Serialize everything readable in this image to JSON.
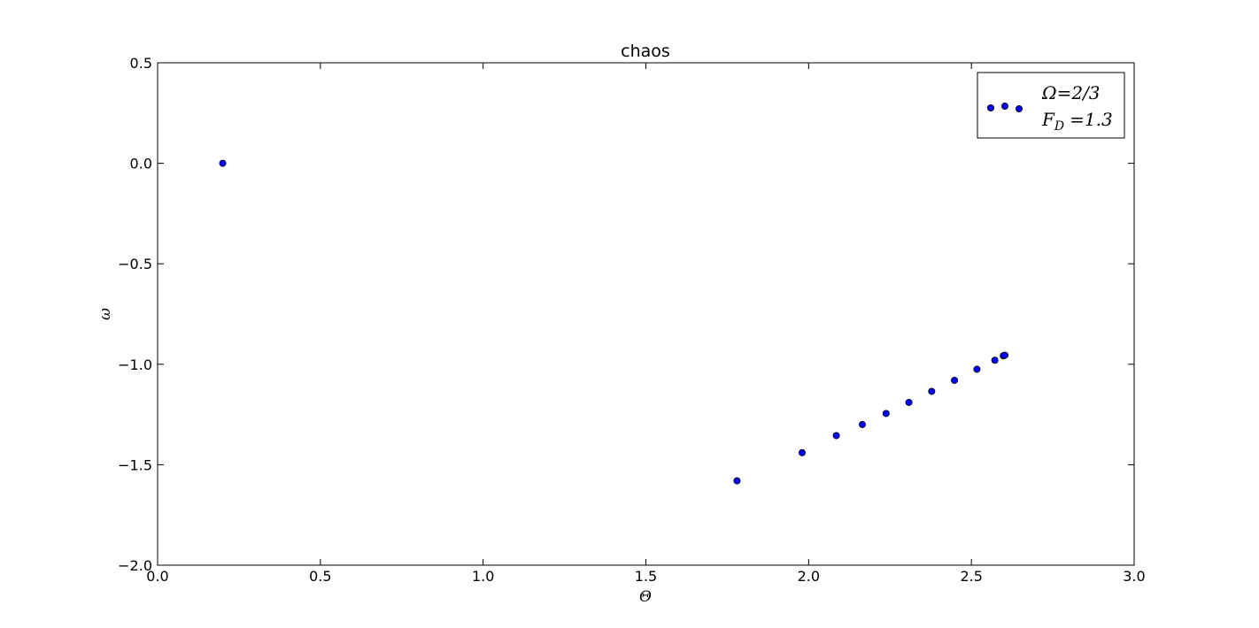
{
  "chart_data": {
    "type": "scatter",
    "title": "chaos",
    "xlabel": "Θ",
    "ylabel": "ω",
    "xlim": [
      0.0,
      3.0
    ],
    "ylim": [
      -2.0,
      0.5
    ],
    "x_ticks": [
      "0.0",
      "0.5",
      "1.0",
      "1.5",
      "2.0",
      "2.5",
      "3.0"
    ],
    "y_ticks": [
      "0.5",
      "0.0",
      "−0.5",
      "−1.0",
      "−1.5",
      "−2.0"
    ],
    "grid": false,
    "legend_position": "top-right",
    "marker_color": "#0000ff",
    "marker_edge_color": "#000000",
    "series": [
      {
        "legend_line1": "Ω=2/3",
        "legend_line2_main": "F",
        "legend_line2_sub": "D",
        "legend_line2_rest": "=1.3",
        "x": [
          0.2,
          1.78,
          1.98,
          2.085,
          2.165,
          2.238,
          2.308,
          2.378,
          2.448,
          2.517,
          2.572,
          2.598,
          2.603
        ],
        "y": [
          0.0,
          -1.58,
          -1.44,
          -1.355,
          -1.3,
          -1.245,
          -1.19,
          -1.135,
          -1.08,
          -1.025,
          -0.98,
          -0.958,
          -0.955
        ]
      }
    ]
  }
}
